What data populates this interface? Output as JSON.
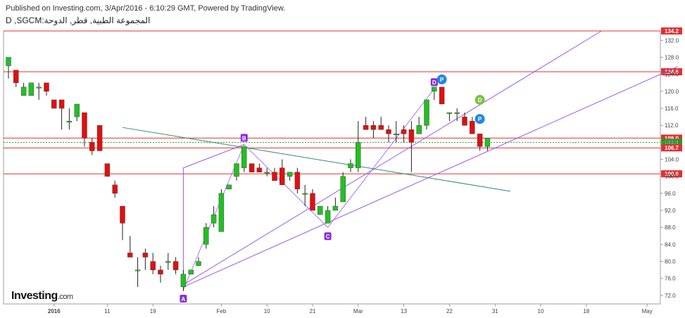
{
  "header": {
    "published": "Published on Investing.com, 3/Apr/2016 - 6:10:29 GMT, Powered by TradingView.",
    "symbol": "D ,SGCM:المجموعة الطبية, قطر, الدوحة"
  },
  "logo": {
    "brand": "Investing",
    "domain": ".com"
  },
  "colors": {
    "up": "#22c022",
    "down": "#e01010",
    "wick": "#222222",
    "channel": "#9b59e6",
    "trend": "#2e8b75",
    "hline": "#e03030",
    "hline_green": "#1fa01f",
    "axis": "#888888",
    "grid": "#eeeeee",
    "label_purple": "#8a2be2",
    "label_blue": "#1e88e5",
    "label_green": "#7cc142"
  },
  "chart_data": {
    "type": "candlestick",
    "y_axis": {
      "min": 70,
      "max": 134.2,
      "ticks": [
        72.0,
        76.0,
        80.0,
        84.0,
        88.0,
        92.0,
        96.0,
        100.0,
        104.0,
        108.0,
        112.0,
        116.0,
        120.0,
        124.0,
        128.0,
        132.0
      ]
    },
    "x_axis": {
      "ticks": [
        {
          "label": "2016",
          "bold": true,
          "i": 6
        },
        {
          "label": "11",
          "i": 13
        },
        {
          "label": "19",
          "i": 19
        },
        {
          "label": "Feb",
          "i": 28
        },
        {
          "label": "10",
          "i": 34
        },
        {
          "label": "21",
          "i": 40
        },
        {
          "label": "Mar",
          "i": 46
        },
        {
          "label": "13",
          "i": 52
        },
        {
          "label": "22",
          "i": 58
        },
        {
          "label": "31",
          "i": 64
        },
        {
          "label": "10",
          "i": 70
        },
        {
          "label": "18",
          "i": 76
        },
        {
          "label": "May",
          "i": 84
        }
      ]
    },
    "candles": [
      {
        "o": 126.0,
        "h": 128.0,
        "l": 123.0,
        "c": 128.0
      },
      {
        "o": 125.0,
        "h": 125.0,
        "l": 121.0,
        "c": 122.0
      },
      {
        "o": 119.0,
        "h": 122.0,
        "l": 119.0,
        "c": 121.0
      },
      {
        "o": 119.0,
        "h": 122.0,
        "l": 119.0,
        "c": 122.0
      },
      {
        "o": 121.0,
        "h": 122.0,
        "l": 118.0,
        "c": 121.0
      },
      {
        "o": 122.0,
        "h": 122.0,
        "l": 119.0,
        "c": 120.0
      },
      {
        "o": 118.0,
        "h": 118.0,
        "l": 116.0,
        "c": 116.0
      },
      {
        "o": 118.0,
        "h": 118.0,
        "l": 111.0,
        "c": 116.0
      },
      {
        "o": 113.0,
        "h": 116.0,
        "l": 111.0,
        "c": 113.0
      },
      {
        "o": 114.0,
        "h": 117.0,
        "l": 113.0,
        "c": 117.0
      },
      {
        "o": 115.0,
        "h": 115.0,
        "l": 107.0,
        "c": 109.0
      },
      {
        "o": 108.0,
        "h": 109.0,
        "l": 105.0,
        "c": 106.0
      },
      {
        "o": 112.0,
        "h": 112.0,
        "l": 106.0,
        "c": 106.0
      },
      {
        "o": 103.0,
        "h": 103.0,
        "l": 100.0,
        "c": 100.0
      },
      {
        "o": 98.0,
        "h": 99.0,
        "l": 95.0,
        "c": 96.0
      },
      {
        "o": 93.0,
        "h": 93.0,
        "l": 85.0,
        "c": 89.0
      },
      {
        "o": 82.0,
        "h": 86.0,
        "l": 81.0,
        "c": 81.0
      },
      {
        "o": 78.0,
        "h": 81.0,
        "l": 74.0,
        "c": 78.0
      },
      {
        "o": 82.0,
        "h": 83.0,
        "l": 78.0,
        "c": 81.0
      },
      {
        "o": 80.0,
        "h": 82.0,
        "l": 77.0,
        "c": 78.0
      },
      {
        "o": 78.0,
        "h": 79.0,
        "l": 75.0,
        "c": 77.0
      },
      {
        "o": 80.0,
        "h": 82.0,
        "l": 78.0,
        "c": 80.0
      },
      {
        "o": 80.0,
        "h": 81.0,
        "l": 77.0,
        "c": 78.0
      },
      {
        "o": 74.0,
        "h": 78.0,
        "l": 73.0,
        "c": 77.0
      },
      {
        "o": 77.0,
        "h": 78.0,
        "l": 77.0,
        "c": 78.0
      },
      {
        "o": 79.0,
        "h": 81.0,
        "l": 79.0,
        "c": 80.0
      },
      {
        "o": 84.0,
        "h": 89.0,
        "l": 83.0,
        "c": 88.0
      },
      {
        "o": 89.0,
        "h": 93.0,
        "l": 88.0,
        "c": 91.0
      },
      {
        "o": 87.0,
        "h": 97.0,
        "l": 87.0,
        "c": 96.0
      },
      {
        "o": 97.0,
        "h": 98.0,
        "l": 97.0,
        "c": 98.0
      },
      {
        "o": 100.0,
        "h": 103.0,
        "l": 99.0,
        "c": 103.0
      },
      {
        "o": 102.0,
        "h": 107.0,
        "l": 101.0,
        "c": 107.0
      },
      {
        "o": 103.0,
        "h": 103.0,
        "l": 101.0,
        "c": 101.0
      },
      {
        "o": 102.0,
        "h": 103.0,
        "l": 101.0,
        "c": 101.0
      },
      {
        "o": 101.0,
        "h": 102.0,
        "l": 100.0,
        "c": 101.0
      },
      {
        "o": 101.0,
        "h": 102.0,
        "l": 99.0,
        "c": 99.0
      },
      {
        "o": 102.0,
        "h": 104.0,
        "l": 98.0,
        "c": 98.0
      },
      {
        "o": 100.0,
        "h": 101.0,
        "l": 99.0,
        "c": 101.0
      },
      {
        "o": 101.0,
        "h": 102.0,
        "l": 96.0,
        "c": 97.0
      },
      {
        "o": 96.0,
        "h": 98.0,
        "l": 93.0,
        "c": 96.0
      },
      {
        "o": 96.0,
        "h": 97.0,
        "l": 92.0,
        "c": 92.0
      },
      {
        "o": 91.0,
        "h": 93.0,
        "l": 91.0,
        "c": 93.0
      },
      {
        "o": 89.0,
        "h": 93.0,
        "l": 89.0,
        "c": 92.0
      },
      {
        "o": 92.0,
        "h": 95.0,
        "l": 92.0,
        "c": 93.0
      },
      {
        "o": 94.0,
        "h": 101.0,
        "l": 94.0,
        "c": 100.0
      },
      {
        "o": 102.0,
        "h": 104.0,
        "l": 101.0,
        "c": 103.0
      },
      {
        "o": 102.0,
        "h": 113.0,
        "l": 101.0,
        "c": 108.0
      },
      {
        "o": 112.0,
        "h": 114.0,
        "l": 111.0,
        "c": 111.0
      },
      {
        "o": 112.0,
        "h": 113.0,
        "l": 109.0,
        "c": 111.0
      },
      {
        "o": 112.0,
        "h": 114.0,
        "l": 111.0,
        "c": 111.0
      },
      {
        "o": 111.0,
        "h": 112.0,
        "l": 108.0,
        "c": 110.0
      },
      {
        "o": 110.0,
        "h": 113.0,
        "l": 108.0,
        "c": 110.0
      },
      {
        "o": 111.0,
        "h": 112.0,
        "l": 108.0,
        "c": 110.0
      },
      {
        "o": 111.0,
        "h": 113.0,
        "l": 101.0,
        "c": 108.0
      },
      {
        "o": 110.0,
        "h": 114.0,
        "l": 110.0,
        "c": 112.0
      },
      {
        "o": 112.0,
        "h": 118.0,
        "l": 111.0,
        "c": 118.0
      },
      {
        "o": 120.0,
        "h": 121.0,
        "l": 118.0,
        "c": 121.0
      },
      {
        "o": 121.0,
        "h": 121.0,
        "l": 117.0,
        "c": 117.0
      },
      {
        "o": 115.0,
        "h": 115.0,
        "l": 113.0,
        "c": 115.0
      },
      {
        "o": 115.0,
        "h": 116.0,
        "l": 113.0,
        "c": 115.0
      },
      {
        "o": 114.0,
        "h": 115.0,
        "l": 112.0,
        "c": 112.0
      },
      {
        "o": 113.0,
        "h": 114.0,
        "l": 110.0,
        "c": 110.0
      },
      {
        "o": 110.0,
        "h": 110.0,
        "l": 106.0,
        "c": 107.0
      },
      {
        "o": 107.0,
        "h": 109.0,
        "l": 106.0,
        "c": 109.0
      }
    ],
    "horizontal_lines": [
      {
        "value": 134.2,
        "label": "134.2",
        "color": "#e03030"
      },
      {
        "value": 124.6,
        "label": "124.6",
        "color": "#e03030"
      },
      {
        "value": 109.0,
        "label": "109.0",
        "color": "#e03030"
      },
      {
        "value": 108.0,
        "label": "108.0",
        "color": "#1fa01f",
        "dashed": true
      },
      {
        "value": 106.7,
        "label": "106.7",
        "color": "#e03030"
      },
      {
        "value": 100.6,
        "label": "100.6",
        "color": "#e03030"
      }
    ],
    "abcd_points": [
      {
        "label": "A",
        "i": 23,
        "v": 73.3
      },
      {
        "label": "B",
        "i": 31,
        "v": 107.5
      },
      {
        "label": "C",
        "i": 42,
        "v": 88.0
      },
      {
        "label": "D",
        "i": 56,
        "v": 120.6
      }
    ],
    "markers": [
      {
        "label": "P",
        "i": 57,
        "v": 122.8,
        "color": "#1e88e5"
      },
      {
        "label": "D",
        "i": 62,
        "v": 118.0,
        "color": "#7cc142"
      },
      {
        "label": "P",
        "i": 62,
        "v": 113.5,
        "color": "#1e88e5"
      }
    ],
    "channel_lines": [
      {
        "i1": 23,
        "v1": 74.5,
        "i2": 78,
        "v2": 134.2
      },
      {
        "i1": 23,
        "v1": 74.0,
        "i2": 88,
        "v2": 125.8
      },
      {
        "i1": 23,
        "v1": 74.0,
        "i2": 23,
        "v2": 102.0
      },
      {
        "i1": 23,
        "v1": 102.0,
        "i2": 31,
        "v2": 107.5
      }
    ],
    "trend_line": {
      "i1": 15,
      "v1": 111.5,
      "i2": 66,
      "v2": 96.5
    }
  }
}
